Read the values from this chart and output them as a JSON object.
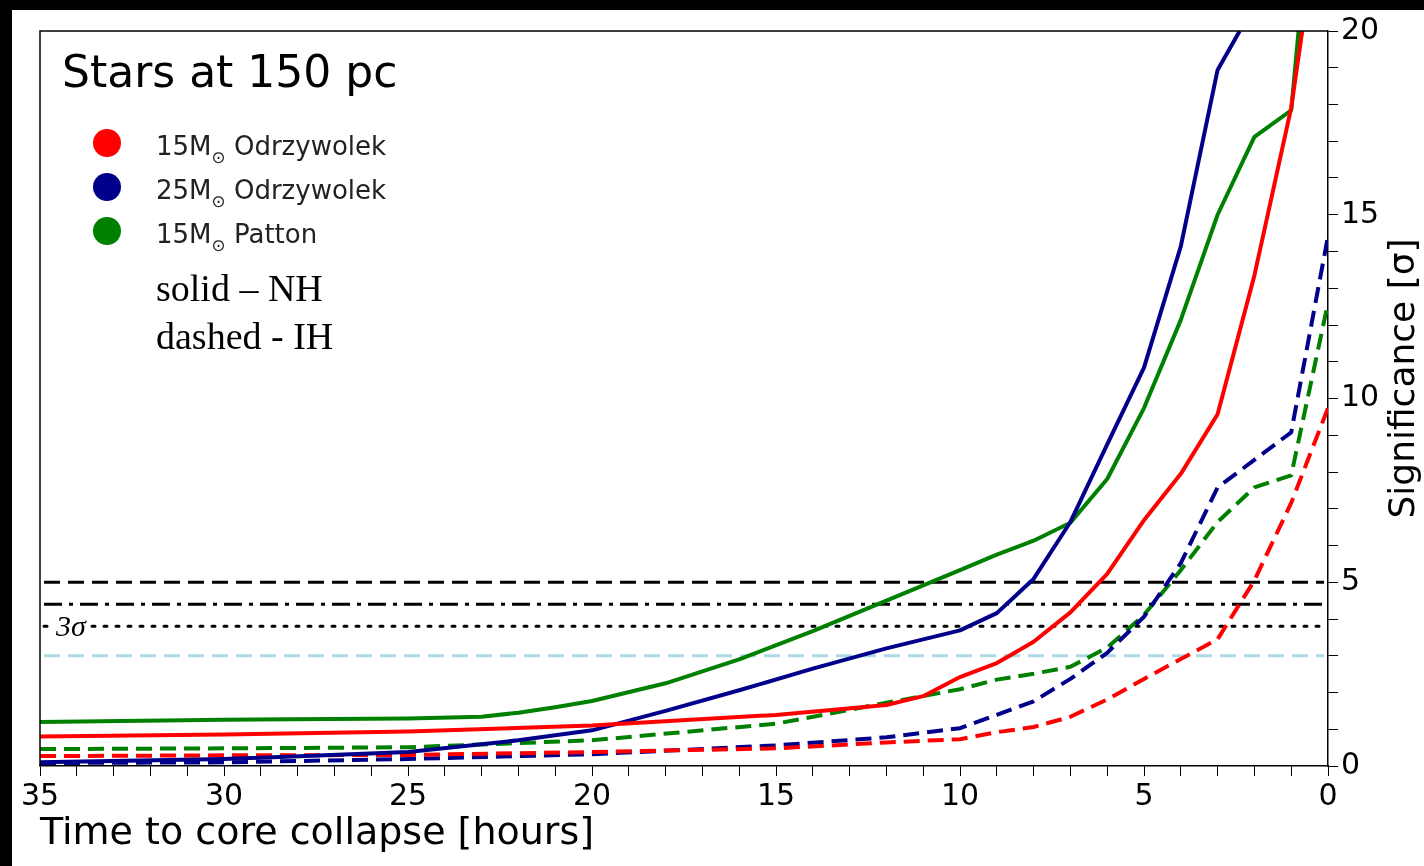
{
  "chart_data": {
    "type": "line",
    "legend_title": "Stars at 150 pc",
    "xlabel": "Time to core collapse [hours]",
    "ylabel": "Significance [σ]",
    "xlim": [
      35,
      0
    ],
    "xticks": [
      35,
      {
        "value": 34,
        "label": null
      },
      {
        "value": 33,
        "label": null
      },
      {
        "value": 32,
        "label": null
      },
      {
        "value": 31,
        "label": null
      },
      30,
      {
        "value": 29,
        "label": null
      },
      {
        "value": 28,
        "label": null
      },
      {
        "value": 27,
        "label": null
      },
      {
        "value": 26,
        "label": null
      },
      25,
      {
        "value": 24,
        "label": null
      },
      {
        "value": 23,
        "label": null
      },
      {
        "value": 22,
        "label": null
      },
      {
        "value": 21,
        "label": null
      },
      20,
      {
        "value": 19,
        "label": null
      },
      {
        "value": 18,
        "label": null
      },
      {
        "value": 17,
        "label": null
      },
      {
        "value": 16,
        "label": null
      },
      15,
      {
        "value": 14,
        "label": null
      },
      {
        "value": 13,
        "label": null
      },
      {
        "value": 12,
        "label": null
      },
      {
        "value": 11,
        "label": null
      },
      10,
      {
        "value": 9,
        "label": null
      },
      {
        "value": 8,
        "label": null
      },
      {
        "value": 7,
        "label": null
      },
      {
        "value": 6,
        "label": null
      },
      5,
      {
        "value": 4,
        "label": null
      },
      {
        "value": 3,
        "label": null
      },
      {
        "value": 2,
        "label": null
      },
      {
        "value": 1,
        "label": null
      },
      0
    ],
    "ylim": [
      0,
      20
    ],
    "yticks": [
      0,
      {
        "value": 1,
        "label": null
      },
      {
        "value": 2,
        "label": null
      },
      {
        "value": 3,
        "label": null
      },
      {
        "value": 4,
        "label": null
      },
      5,
      {
        "value": 6,
        "label": null
      },
      {
        "value": 7,
        "label": null
      },
      {
        "value": 8,
        "label": null
      },
      {
        "value": 9,
        "label": null
      },
      10,
      {
        "value": 11,
        "label": null
      },
      {
        "value": 12,
        "label": null
      },
      {
        "value": 13,
        "label": null
      },
      {
        "value": 14,
        "label": null
      },
      15,
      {
        "value": 16,
        "label": null
      },
      {
        "value": 17,
        "label": null
      },
      {
        "value": 18,
        "label": null
      },
      {
        "value": 19,
        "label": null
      },
      20
    ],
    "grid": false,
    "legend": "top left",
    "marker": "none",
    "series": [
      {
        "name": "15M$_{⊙}$ Odrzywolek",
        "color": "#ff0000",
        "line_style": "solid",
        "x": [
          35,
          30,
          25,
          20,
          15,
          12,
          11,
          10,
          9,
          8,
          7,
          6,
          5,
          4,
          3,
          2,
          1,
          0.7
        ],
        "values": [
          0.8,
          0.86,
          0.94,
          1.1,
          1.39,
          1.66,
          1.9,
          2.42,
          2.8,
          3.38,
          4.18,
          5.23,
          6.69,
          7.95,
          9.57,
          13.35,
          17.91,
          20
        ]
      },
      {
        "name": "25M$_{⊙}$ Odrzywolek",
        "color": "#00008b",
        "line_style": "solid",
        "x": [
          35,
          30,
          25,
          22,
          20,
          18,
          16,
          14,
          12,
          10,
          9,
          8,
          7,
          6,
          5,
          4,
          3,
          2.4
        ],
        "values": [
          0.1,
          0.19,
          0.38,
          0.7,
          0.97,
          1.5,
          2.06,
          2.65,
          3.2,
          3.69,
          4.16,
          5.09,
          6.64,
          8.75,
          10.84,
          14.14,
          18.94,
          20
        ]
      },
      {
        "name": "15M$_{⊙}$ Patton",
        "color": "#008000",
        "line_style": "solid",
        "x": [
          35,
          30,
          25,
          23,
          22,
          21,
          20,
          18,
          16,
          14,
          12,
          10,
          9,
          8,
          7,
          6,
          5,
          4,
          3,
          2,
          1,
          0.8
        ],
        "values": [
          1.2,
          1.26,
          1.29,
          1.34,
          1.45,
          1.6,
          1.77,
          2.25,
          2.9,
          3.67,
          4.5,
          5.33,
          5.75,
          6.13,
          6.62,
          7.81,
          9.74,
          12.14,
          15.0,
          17.12,
          17.84,
          20
        ]
      },
      {
        "color": "#ff0000",
        "line_style": "dashed",
        "x": [
          35,
          30,
          25,
          20,
          15,
          12,
          10,
          9,
          8,
          7,
          6,
          5,
          4,
          3,
          2,
          1,
          0
        ],
        "values": [
          0.27,
          0.29,
          0.3,
          0.38,
          0.48,
          0.64,
          0.73,
          0.92,
          1.06,
          1.34,
          1.81,
          2.37,
          2.91,
          3.45,
          5.05,
          7.16,
          9.74
        ]
      },
      {
        "color": "#00008b",
        "line_style": "dashed",
        "x": [
          35,
          30,
          25,
          20,
          15,
          12,
          10,
          9,
          8,
          7,
          6,
          5,
          4,
          3,
          2,
          1,
          0
        ],
        "values": [
          0.08,
          0.1,
          0.19,
          0.32,
          0.56,
          0.78,
          1.03,
          1.39,
          1.76,
          2.37,
          3.08,
          4.06,
          5.52,
          7.58,
          8.33,
          9.08,
          14.42
        ]
      },
      {
        "color": "#008000",
        "line_style": "dashed",
        "x": [
          35,
          30,
          25,
          20,
          15,
          12,
          10,
          9,
          8,
          7,
          6,
          5,
          4,
          3,
          2,
          1,
          0
        ],
        "values": [
          0.46,
          0.48,
          0.51,
          0.7,
          1.15,
          1.72,
          2.09,
          2.35,
          2.51,
          2.7,
          3.22,
          4.11,
          5.33,
          6.64,
          7.58,
          7.91,
          12.6
        ]
      }
    ],
    "ref_lines": [
      {
        "axis": "y",
        "value": 5,
        "color": "#000000",
        "line_style": "dashed"
      },
      {
        "axis": "y",
        "value": 4.4,
        "color": "#000000",
        "line_style": "dashdot"
      },
      {
        "axis": "y",
        "value": 3.8,
        "color": "#000000",
        "line_style": "dotted",
        "label": "3σ"
      },
      {
        "axis": "y",
        "value": 3,
        "color": "#add8e6",
        "line_style": "dashed"
      }
    ],
    "annotations": [
      "solid – NH",
      "dashed - IH"
    ]
  }
}
